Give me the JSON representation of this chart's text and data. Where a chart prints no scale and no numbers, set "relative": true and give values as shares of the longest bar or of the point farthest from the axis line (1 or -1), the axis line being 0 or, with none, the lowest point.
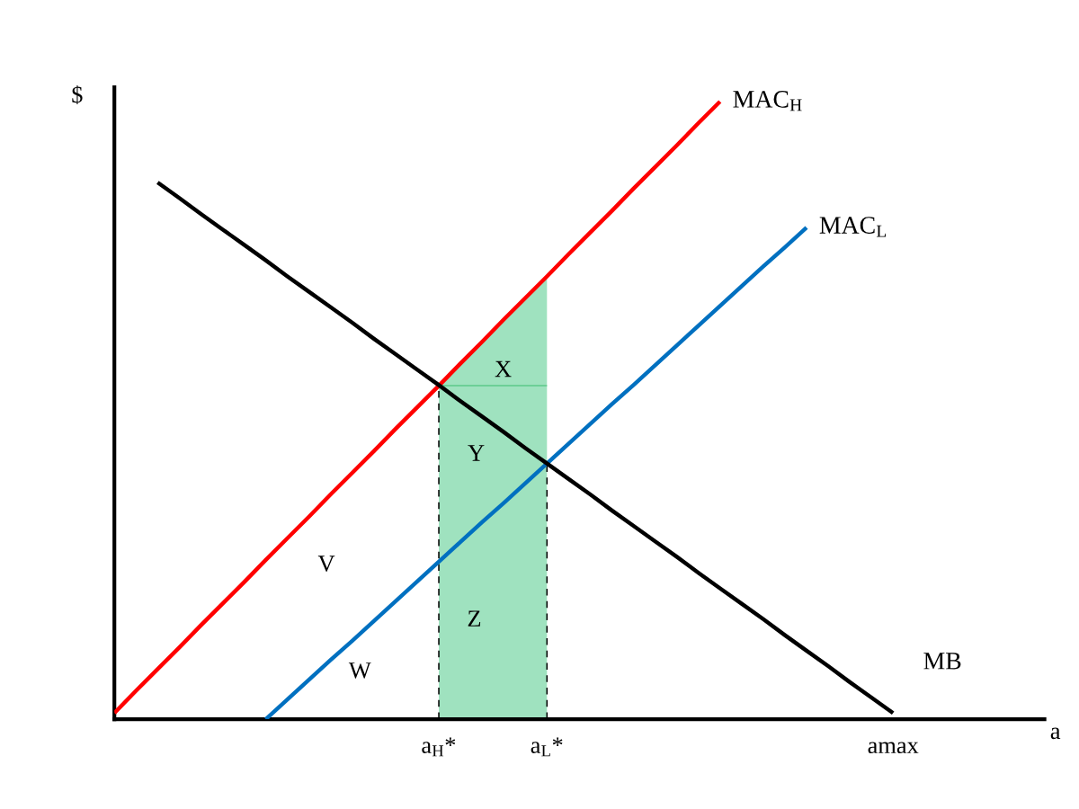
{
  "chart_data": {
    "type": "line",
    "relative": true,
    "xlabel": "a",
    "ylabel": "$",
    "categories": [
      null,
      null,
      null,
      null,
      null,
      null,
      null,
      null,
      null,
      null,
      null,
      null,
      null,
      null,
      null,
      "a$_{H}$*",
      null,
      null,
      null,
      null,
      "a$_{L}$*",
      null,
      null,
      null,
      null,
      null,
      null,
      null,
      null,
      null,
      null,
      null,
      null,
      null,
      null,
      null,
      "amax",
      null,
      null,
      null,
      null,
      null,
      null,
      null
    ],
    "tick_labels": "x",
    "series": [
      {
        "type": "area",
        "color": "#9fe2bf",
        "values": [
          null,
          null,
          null,
          null,
          null,
          null,
          null,
          null,
          null,
          null,
          null,
          null,
          null,
          null,
          null,
          0.54,
          0.576,
          0.611,
          0.647,
          0.682,
          0.717,
          null,
          null,
          null,
          null,
          null,
          null,
          null,
          null,
          null,
          null,
          null,
          null,
          null,
          null,
          null,
          null,
          null,
          null,
          null,
          null,
          null,
          null,
          null
        ]
      },
      {
        "name": "MAC$_{H}$",
        "color": "#ff0000",
        "values": [
          0.01,
          0.046,
          0.081,
          0.116,
          0.152,
          0.187,
          0.222,
          0.258,
          0.293,
          0.328,
          0.364,
          0.399,
          0.434,
          0.47,
          0.505,
          0.54,
          0.576,
          0.611,
          0.647,
          0.682,
          0.717,
          0.753,
          0.788,
          0.823,
          0.859,
          0.894,
          0.929,
          0.965,
          1.0,
          null,
          null,
          null,
          null,
          null,
          null,
          null,
          null,
          null,
          null,
          null,
          null,
          null,
          null,
          null
        ]
      },
      {
        "name": "MAC$_{L}$",
        "color": "#0070c0",
        "values": [
          null,
          null,
          null,
          null,
          null,
          null,
          null,
          0,
          0.032,
          0.064,
          0.096,
          0.127,
          0.159,
          0.191,
          0.223,
          0.255,
          0.287,
          0.319,
          0.35,
          0.382,
          0.414,
          0.446,
          0.478,
          0.51,
          0.541,
          0.573,
          0.605,
          0.637,
          0.669,
          0.701,
          0.733,
          0.764,
          0.796,
          null,
          null,
          null,
          null,
          null,
          null,
          null,
          null,
          null,
          null,
          null
        ]
      },
      {
        "name": "MB",
        "color": "#000000",
        "values": [
          null,
          null,
          0.869,
          0.844,
          0.818,
          0.793,
          0.768,
          0.743,
          0.717,
          0.692,
          0.667,
          0.642,
          0.616,
          0.591,
          0.566,
          0.541,
          0.515,
          0.49,
          0.465,
          0.439,
          0.414,
          0.389,
          0.364,
          0.338,
          0.313,
          0.288,
          0.263,
          0.237,
          0.212,
          0.187,
          0.162,
          0.136,
          0.111,
          0.086,
          0.06,
          0.035,
          0.01,
          null,
          null,
          null,
          null,
          null,
          null,
          null
        ]
      },
      {
        "color": "#5cc98a",
        "values": [
          null,
          null,
          null,
          null,
          null,
          null,
          null,
          null,
          null,
          null,
          null,
          null,
          null,
          null,
          null,
          0.54,
          0.54,
          0.54,
          0.54,
          0.54,
          0.54,
          null,
          null,
          null,
          null,
          null,
          null,
          null,
          null,
          null,
          null,
          null,
          null,
          null,
          null,
          null,
          null,
          null,
          null,
          null,
          null,
          null,
          null,
          null
        ]
      },
      {
        "color": "#000000",
        "line_style": "dashed",
        "x": [
          "a$_{H}$*",
          "a$_{H}$*"
        ],
        "values": [
          0,
          0.54
        ]
      },
      {
        "color": "#000000",
        "line_style": "dashed",
        "x": [
          "a$_{L}$*",
          "a$_{L}$*"
        ],
        "values": [
          0,
          0.414
        ]
      }
    ],
    "annotations": [
      "X",
      "Y",
      "Z",
      "V",
      "W"
    ]
  }
}
